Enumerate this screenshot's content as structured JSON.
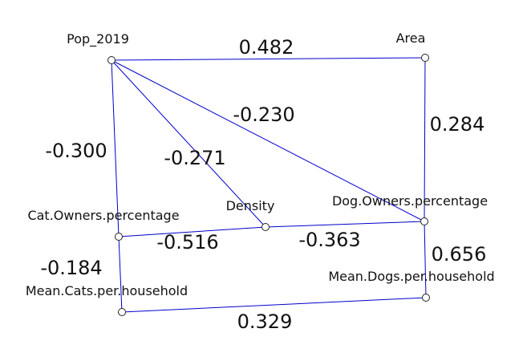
{
  "graph": {
    "edge_color": "#0000cc",
    "node_fill": "#ffffff",
    "node_stroke": "#222222",
    "nodes": [
      {
        "id": "pop",
        "label": "Pop_2019"
      },
      {
        "id": "area",
        "label": "Area"
      },
      {
        "id": "density",
        "label": "Density"
      },
      {
        "id": "dog_own",
        "label": "Dog.Owners.percentage"
      },
      {
        "id": "cat_own",
        "label": "Cat.Owners.percentage"
      },
      {
        "id": "mean_cats",
        "label": "Mean.Cats.per.household"
      },
      {
        "id": "mean_dogs",
        "label": "Mean.Dogs.per.household"
      }
    ],
    "edges": [
      {
        "source": "pop",
        "target": "area",
        "label": "0.482"
      },
      {
        "source": "pop",
        "target": "dog_own",
        "label": "-0.230"
      },
      {
        "source": "pop",
        "target": "density",
        "label": "-0.271"
      },
      {
        "source": "pop",
        "target": "cat_own",
        "label": "-0.300"
      },
      {
        "source": "area",
        "target": "dog_own",
        "label": "0.284"
      },
      {
        "source": "cat_own",
        "target": "density",
        "label": "-0.516"
      },
      {
        "source": "density",
        "target": "dog_own",
        "label": "-0.363"
      },
      {
        "source": "cat_own",
        "target": "mean_cats",
        "label": "-0.184"
      },
      {
        "source": "dog_own",
        "target": "mean_dogs",
        "label": "0.656"
      },
      {
        "source": "mean_cats",
        "target": "mean_dogs",
        "label": "0.329"
      }
    ]
  }
}
